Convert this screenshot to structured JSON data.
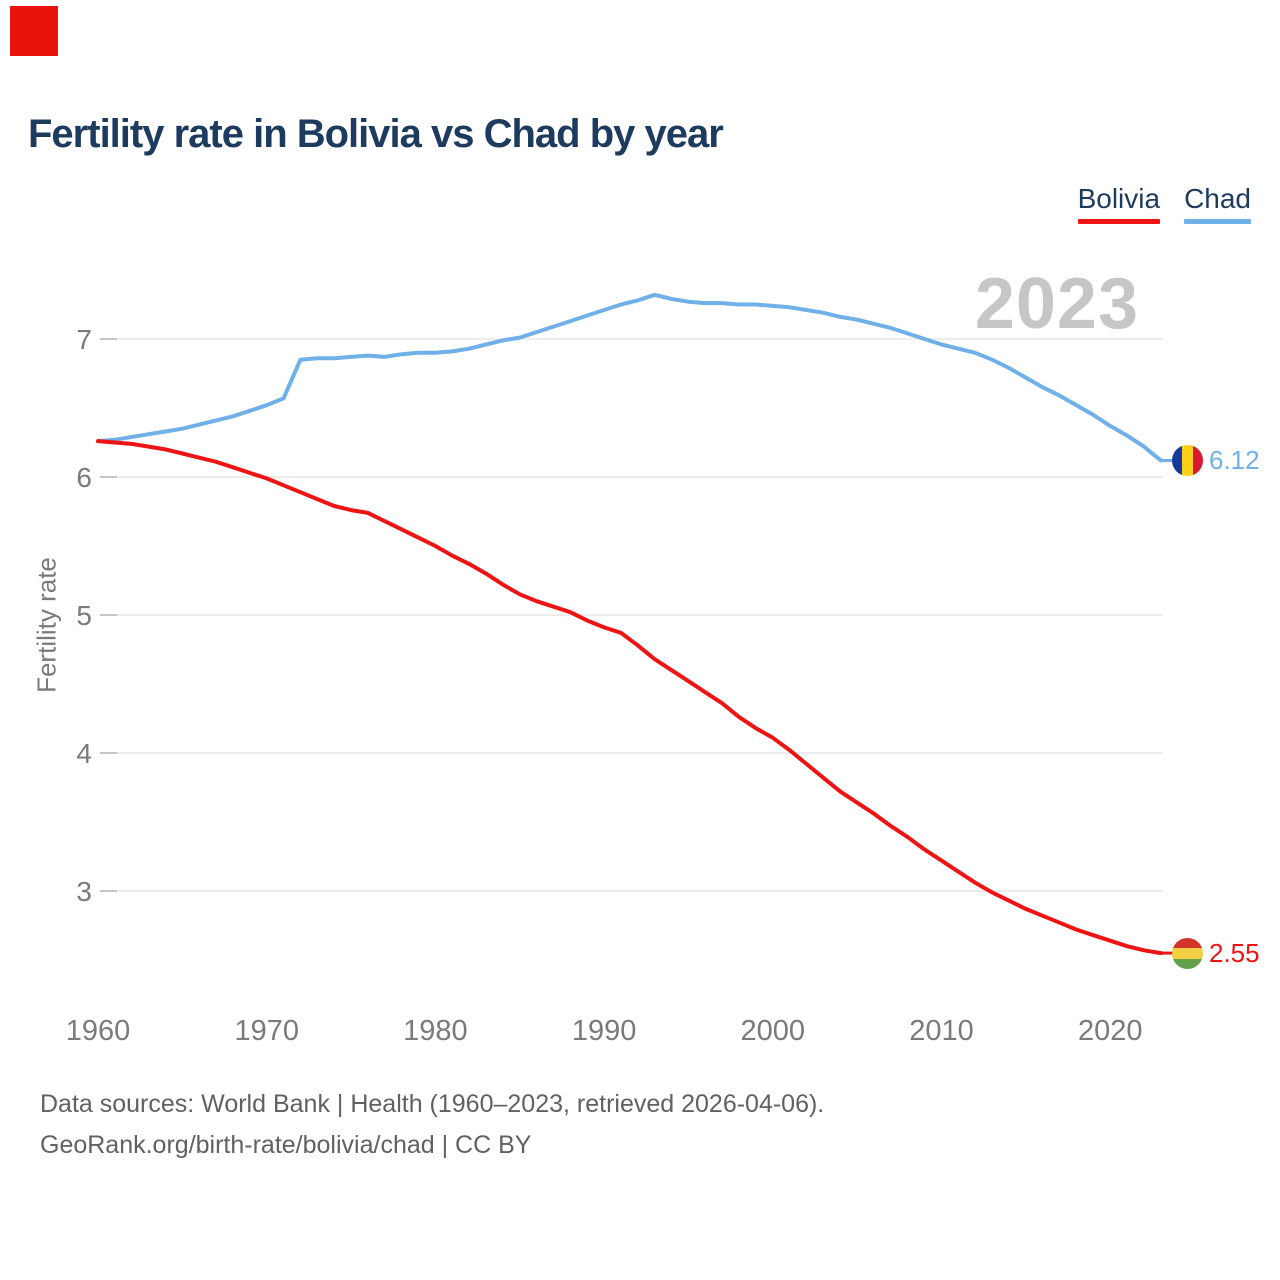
{
  "logo_color": "#e8130b",
  "footer": {
    "line1": "Data sources: World Bank | Health (1960–2023, retrieved 2026-04-06).",
    "line2": "GeoRank.org/birth-rate/bolivia/chad | CC BY"
  },
  "chart_data": {
    "type": "line",
    "title": "Fertility rate in Bolivia vs Chad by year",
    "xlabel": "",
    "ylabel": "Fertility rate",
    "watermark": "2023",
    "legend_position": "top-right",
    "grid": "horizontal",
    "x_ticks": [
      "1960",
      "1970",
      "1980",
      "1990",
      "2000",
      "2010",
      "2020"
    ],
    "y_ticks": [
      "7",
      "6",
      "5",
      "4",
      "3"
    ],
    "xlim": [
      1960,
      2023
    ],
    "ylim": [
      2.3,
      7.55
    ],
    "years": [
      1960,
      1961,
      1962,
      1963,
      1964,
      1965,
      1966,
      1967,
      1968,
      1969,
      1970,
      1971,
      1972,
      1973,
      1974,
      1975,
      1976,
      1977,
      1978,
      1979,
      1980,
      1981,
      1982,
      1983,
      1984,
      1985,
      1986,
      1987,
      1988,
      1989,
      1990,
      1991,
      1992,
      1993,
      1994,
      1995,
      1996,
      1997,
      1998,
      1999,
      2000,
      2001,
      2002,
      2003,
      2004,
      2005,
      2006,
      2007,
      2008,
      2009,
      2010,
      2011,
      2012,
      2013,
      2014,
      2015,
      2016,
      2017,
      2018,
      2019,
      2020,
      2021,
      2022,
      2023
    ],
    "series": [
      {
        "name": "Bolivia",
        "color": "#ee1414",
        "end_label": "2.55",
        "end_value": 2.55,
        "flag_direction": "horizontal",
        "flag_colors": [
          "#d4332c",
          "#f2cf43",
          "#63a04a"
        ],
        "values": [
          6.26,
          6.25,
          6.24,
          6.22,
          6.2,
          6.17,
          6.14,
          6.11,
          6.07,
          6.03,
          5.99,
          5.94,
          5.89,
          5.84,
          5.79,
          5.76,
          5.74,
          5.68,
          5.62,
          5.56,
          5.5,
          5.43,
          5.37,
          5.3,
          5.22,
          5.15,
          5.1,
          5.06,
          5.02,
          4.96,
          4.91,
          4.87,
          4.78,
          4.68,
          4.6,
          4.52,
          4.44,
          4.36,
          4.26,
          4.18,
          4.11,
          4.02,
          3.92,
          3.82,
          3.72,
          3.64,
          3.56,
          3.47,
          3.39,
          3.3,
          3.22,
          3.14,
          3.06,
          2.99,
          2.93,
          2.87,
          2.82,
          2.77,
          2.72,
          2.68,
          2.64,
          2.6,
          2.57,
          2.55
        ]
      },
      {
        "name": "Chad",
        "color": "#6fb0e9",
        "end_label": "6.12",
        "end_value": 6.12,
        "flag_direction": "vertical",
        "flag_colors": [
          "#19389c",
          "#fcd018",
          "#da1830"
        ],
        "values": [
          6.26,
          6.27,
          6.29,
          6.31,
          6.33,
          6.35,
          6.38,
          6.41,
          6.44,
          6.48,
          6.52,
          6.57,
          6.85,
          6.86,
          6.86,
          6.87,
          6.88,
          6.87,
          6.89,
          6.9,
          6.9,
          6.91,
          6.93,
          6.96,
          6.99,
          7.01,
          7.05,
          7.09,
          7.13,
          7.17,
          7.21,
          7.25,
          7.28,
          7.32,
          7.29,
          7.27,
          7.26,
          7.26,
          7.25,
          7.25,
          7.24,
          7.23,
          7.21,
          7.19,
          7.16,
          7.14,
          7.11,
          7.08,
          7.04,
          7.0,
          6.96,
          6.93,
          6.9,
          6.85,
          6.79,
          6.72,
          6.65,
          6.59,
          6.52,
          6.45,
          6.37,
          6.3,
          6.22,
          6.12
        ]
      }
    ]
  }
}
